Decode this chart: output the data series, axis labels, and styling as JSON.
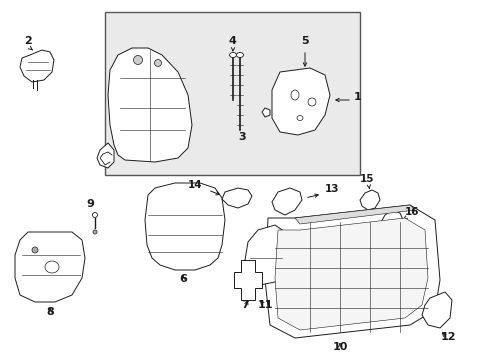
{
  "bg_color": "#ffffff",
  "box_bg": "#e8e8e8",
  "line_color": "#1a1a1a",
  "fig_w": 4.89,
  "fig_h": 3.6,
  "dpi": 100
}
